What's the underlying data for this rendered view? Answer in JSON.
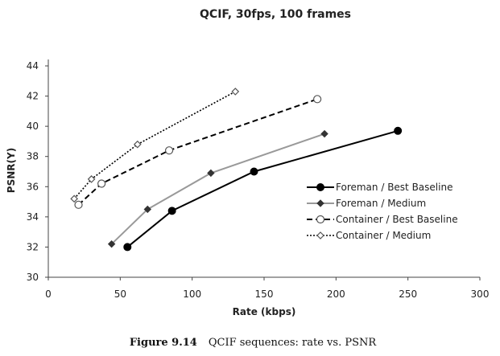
{
  "chart_data": {
    "type": "line",
    "title": "QCIF, 30fps, 100 frames",
    "xlabel": "Rate (kbps)",
    "ylabel": "PSNR(Y)",
    "xlim": [
      0,
      300
    ],
    "ylim": [
      30,
      44
    ],
    "xticks": [
      0,
      50,
      100,
      150,
      200,
      250,
      300
    ],
    "yticks": [
      30,
      32,
      34,
      36,
      38,
      40,
      42,
      44
    ],
    "grid": false,
    "legend_position": "right",
    "series": [
      {
        "name": "Foreman / Best Baseline",
        "color": "#000000",
        "dash": "solid",
        "marker": "filled-circle",
        "x": [
          55,
          86,
          143,
          243
        ],
        "y": [
          32.0,
          34.4,
          37.0,
          39.7
        ]
      },
      {
        "name": "Foreman / Medium",
        "color": "#999999",
        "dash": "solid",
        "marker": "diamond",
        "x": [
          44,
          69,
          113,
          192
        ],
        "y": [
          32.2,
          34.5,
          36.9,
          39.5
        ]
      },
      {
        "name": "Container / Best Baseline",
        "color": "#000000",
        "dash": "dashed",
        "marker": "open-circle",
        "x": [
          21,
          37,
          84,
          187
        ],
        "y": [
          34.8,
          36.2,
          38.4,
          41.8
        ]
      },
      {
        "name": "Container / Medium",
        "color": "#000000",
        "dash": "dotted",
        "marker": "open-diamond",
        "x": [
          18,
          30,
          62,
          130
        ],
        "y": [
          35.2,
          36.5,
          38.8,
          42.3
        ]
      }
    ]
  },
  "caption": {
    "label": "Figure 9.14",
    "text": "QCIF sequences: rate vs. PSNR"
  }
}
